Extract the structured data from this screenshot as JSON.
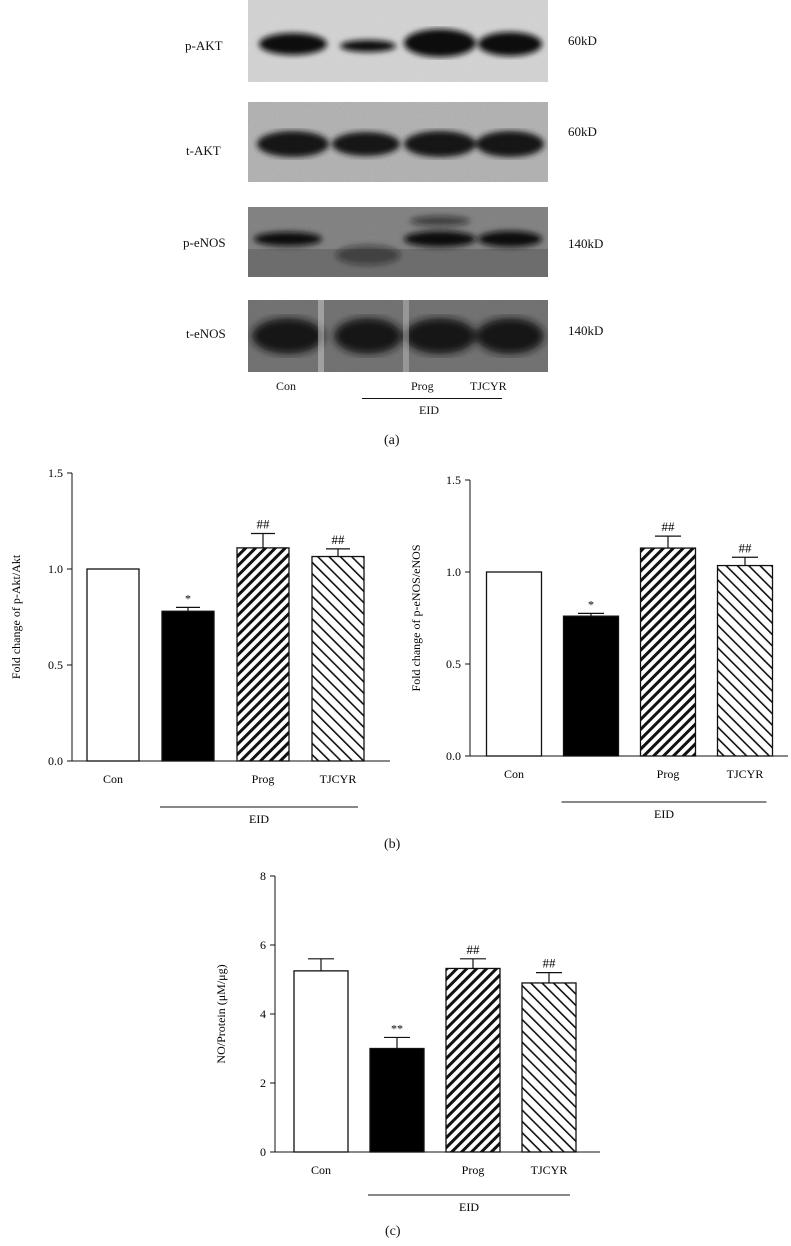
{
  "panel_a": {
    "label": "(a)",
    "blots": [
      {
        "label": "p-AKT",
        "mw": "60kD"
      },
      {
        "label": "t-AKT",
        "mw": "60kD"
      },
      {
        "label": "p-eNOS",
        "mw": "140kD"
      },
      {
        "label": "t-eNOS",
        "mw": "140kD"
      }
    ],
    "lanes": [
      "Con",
      "Prog",
      "TJCYR"
    ],
    "group_label": "EID"
  },
  "panel_b": {
    "label": "(b)"
  },
  "panel_c": {
    "label": "(c)"
  },
  "chart_data": [
    {
      "id": "b-left",
      "type": "bar",
      "ylabel": "Fold change of p-Akt/Akt",
      "xlabel": "",
      "categories": [
        "Con",
        "",
        "Prog",
        "TJCYR"
      ],
      "values": [
        1.0,
        0.78,
        1.11,
        1.065
      ],
      "errors": [
        0,
        0.02,
        0.075,
        0.04
      ],
      "annotations": [
        "",
        "*",
        "##",
        "##"
      ],
      "fills": [
        "white",
        "black",
        "hatch-right",
        "hatch-left"
      ],
      "ylim": [
        0,
        1.5
      ],
      "yticks": [
        "0.0",
        "0.5",
        "1.0",
        "1.5"
      ],
      "group_label": "EID"
    },
    {
      "id": "b-right",
      "type": "bar",
      "ylabel": "Fold change of p-eNOS/eNOS",
      "xlabel": "",
      "categories": [
        "Con",
        "",
        "Prog",
        "TJCYR"
      ],
      "values": [
        1.0,
        0.76,
        1.13,
        1.035
      ],
      "errors": [
        0,
        0.015,
        0.065,
        0.045
      ],
      "annotations": [
        "",
        "*",
        "##",
        "##"
      ],
      "fills": [
        "white",
        "black",
        "hatch-right",
        "hatch-left"
      ],
      "ylim": [
        0,
        1.5
      ],
      "yticks": [
        "0.0",
        "0.5",
        "1.0",
        "1.5"
      ],
      "group_label": "EID"
    },
    {
      "id": "c",
      "type": "bar",
      "ylabel": "NO/Protein (μM/μg)",
      "xlabel": "",
      "categories": [
        "Con",
        "",
        "Prog",
        "TJCYR"
      ],
      "values": [
        5.25,
        3.0,
        5.32,
        4.9
      ],
      "errors": [
        0.35,
        0.32,
        0.28,
        0.3
      ],
      "annotations": [
        "",
        "**",
        "##",
        "##"
      ],
      "fills": [
        "white",
        "black",
        "hatch-right",
        "hatch-left"
      ],
      "ylim": [
        0,
        8
      ],
      "yticks": [
        "0",
        "2",
        "4",
        "6",
        "8"
      ],
      "group_label": "EID"
    }
  ]
}
